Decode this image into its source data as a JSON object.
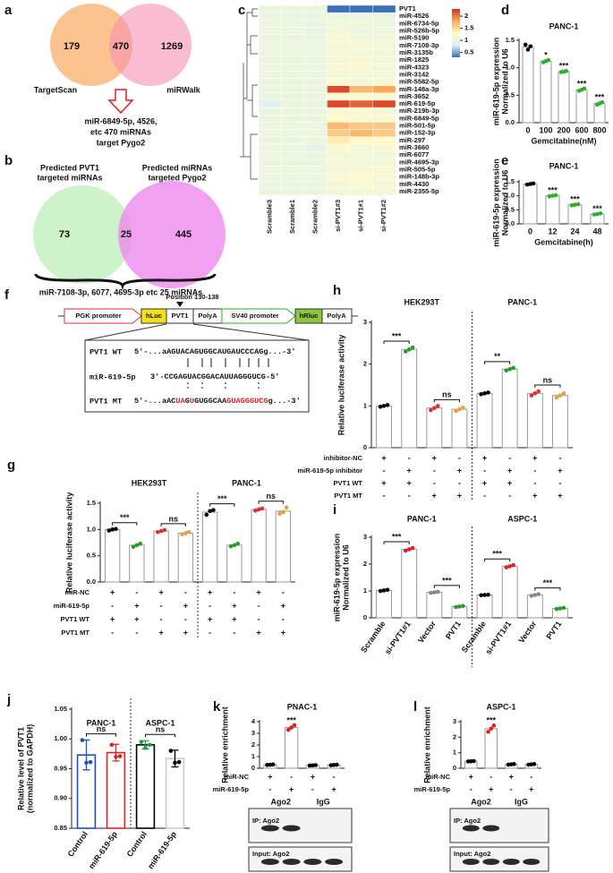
{
  "a": {
    "letter": "a",
    "left": {
      "label": "TargetScan",
      "count": 179
    },
    "both": 470,
    "right": {
      "label": "miRWalk",
      "count": 1269
    },
    "result": [
      "miR-6849-5p, 4526,",
      "etc 470 miRNAs",
      "target Pygo2"
    ]
  },
  "b": {
    "letter": "b",
    "left": {
      "label": [
        "Predicted PVT1",
        "targeted miRNAs"
      ],
      "count": 73
    },
    "both": 25,
    "right": {
      "label": [
        "Predicted miRNAs",
        "targeted Pygo2"
      ],
      "count": 445
    },
    "result": "miR-7108-3p, 6077, 4695-3p etc 25 miRNAs"
  },
  "f": {
    "letter": "f",
    "position": "Position 130-138",
    "elements": [
      "PGK promoter",
      "hLuc",
      "PVT1",
      "PolyA",
      "SV40 promoter",
      "hRluc",
      "PolyA"
    ],
    "alignment": [
      {
        "name": "PVT1 WT",
        "segments": [
          {
            "text": "5'-...aAGUACAGUGGCAUGAUCCCAGg...-3'"
          }
        ]
      },
      {
        "name": "miR-619-5p",
        "segments": [
          {
            "text": "3'-CCGAGUACGGACAUUAGGGUCG-5'"
          }
        ]
      },
      {
        "name": "PVT1 MT",
        "segments": [
          {
            "text": "5'-...aAC"
          },
          {
            "text": "UA",
            "highlight": true
          },
          {
            "text": "G"
          },
          {
            "text": "U",
            "highlight": true
          },
          {
            "text": "GUGGCAA"
          },
          {
            "text": "GUAGGGUCG",
            "highlight": true
          },
          {
            "text": "g...-3'"
          }
        ]
      }
    ]
  },
  "chart_data": [
    {
      "type": "heatmap",
      "panel": "c",
      "rows": [
        "PVT1",
        "miR-4526",
        "miR-6734-5p",
        "miR-526b-5p",
        "miR-5190",
        "miR-7108-3p",
        "miR-3135b",
        "miR-1825",
        "miR-4323",
        "miR-3142",
        "miR-5582-5p",
        "miR-148a-3p",
        "miR-3652",
        "miR-619-5p",
        "miR-219b-3p",
        "miR-6849-5p",
        "miR-501-5p",
        "miR-152-3p",
        "miR-297",
        "miR-3660",
        "miR-6077",
        "miR-4695-3p",
        "miR-505-5p",
        "miR-148b-3p",
        "miR-4430",
        "miR-2355-5p"
      ],
      "columns": [
        "Scramble3",
        "Scramble1",
        "Scramble2",
        "si-PVT1#3",
        "si-PVT1#1",
        "si-PVT1#2"
      ],
      "values": [
        [
          1.0,
          1.0,
          1.0,
          0.3,
          0.3,
          0.3
        ],
        [
          1.0,
          1.0,
          1.0,
          1.0,
          1.0,
          1.0
        ],
        [
          1.0,
          1.0,
          1.0,
          1.1,
          1.1,
          1.0
        ],
        [
          1.0,
          1.0,
          0.9,
          1.1,
          1.0,
          1.0
        ],
        [
          1.0,
          1.0,
          1.0,
          1.2,
          1.1,
          1.1
        ],
        [
          1.0,
          1.0,
          1.0,
          1.1,
          1.1,
          1.1
        ],
        [
          1.0,
          1.0,
          1.0,
          1.2,
          1.1,
          1.1
        ],
        [
          1.0,
          1.0,
          1.0,
          1.1,
          1.2,
          1.1
        ],
        [
          1.0,
          1.0,
          1.0,
          1.2,
          1.2,
          1.1
        ],
        [
          1.0,
          1.0,
          1.0,
          1.1,
          1.1,
          1.1
        ],
        [
          1.0,
          1.0,
          1.0,
          1.2,
          1.1,
          1.2
        ],
        [
          1.0,
          1.0,
          1.0,
          2.2,
          1.7,
          1.8
        ],
        [
          1.0,
          1.0,
          1.0,
          1.2,
          1.2,
          1.2
        ],
        [
          0.8,
          1.0,
          1.0,
          2.2,
          2.1,
          2.2
        ],
        [
          1.0,
          1.0,
          1.0,
          1.2,
          1.2,
          1.1
        ],
        [
          1.0,
          1.0,
          1.0,
          1.3,
          1.2,
          1.2
        ],
        [
          1.0,
          1.0,
          1.0,
          1.7,
          1.6,
          1.6
        ],
        [
          1.0,
          1.0,
          1.0,
          1.6,
          1.7,
          1.6
        ],
        [
          1.0,
          1.0,
          1.0,
          1.4,
          1.3,
          1.3
        ],
        [
          1.0,
          1.0,
          0.9,
          1.2,
          1.1,
          1.2
        ],
        [
          1.0,
          1.0,
          1.0,
          1.1,
          1.1,
          1.1
        ],
        [
          1.0,
          1.0,
          1.0,
          1.2,
          1.1,
          1.1
        ],
        [
          1.0,
          1.0,
          1.0,
          1.1,
          1.1,
          1.2
        ],
        [
          1.0,
          1.0,
          1.0,
          1.2,
          1.2,
          1.2
        ],
        [
          1.0,
          1.0,
          1.0,
          1.1,
          1.2,
          1.1
        ],
        [
          1.0,
          1.0,
          1.0,
          1.1,
          1.1,
          1.1
        ]
      ],
      "zlim": [
        0.3,
        2.3
      ],
      "zticks": [
        0.5,
        1,
        1.5,
        2
      ],
      "colors": [
        "#3b6fb6",
        "#dff2f0",
        "#fffac8",
        "#f8a95c",
        "#d7301f"
      ]
    },
    {
      "type": "bar",
      "panel": "d",
      "title": "PANC-1",
      "ylabel": [
        "miR-619-5p expression",
        "Normalized to U6"
      ],
      "xlabel": "Gemcitabine(nM)",
      "categories": [
        "0",
        "100",
        "200",
        "600",
        "800"
      ],
      "values": [
        1.38,
        1.12,
        0.93,
        0.6,
        0.35
      ],
      "points": [
        [
          1.42,
          1.33,
          1.39
        ],
        [
          1.1,
          1.12,
          1.14
        ],
        [
          0.92,
          0.93,
          0.94
        ],
        [
          0.58,
          0.6,
          0.62
        ],
        [
          0.33,
          0.35,
          0.37
        ]
      ],
      "annotations": [
        null,
        "*",
        "***",
        "***",
        "***"
      ],
      "colors": [
        "#000000",
        "#2ab02a",
        "#2ab02a",
        "#2ab02a",
        "#2ab02a"
      ],
      "ylim": [
        0,
        1.5
      ],
      "yticks": [
        {
          "value": 0,
          "label": "0.0"
        },
        0.5,
        {
          "value": 1,
          "label": "1.0"
        },
        1.5
      ]
    },
    {
      "type": "bar",
      "panel": "e",
      "title": "PANC-1",
      "ylabel": [
        "miR-619-5p expression",
        "Normalized to U6"
      ],
      "xlabel": "Gemcitabine(h)",
      "categories": [
        "0",
        "12",
        "24",
        "48"
      ],
      "values": [
        1.42,
        1.0,
        0.68,
        0.35
      ],
      "points": [
        [
          1.4,
          1.42,
          1.44
        ],
        [
          0.98,
          1.0,
          1.02
        ],
        [
          0.66,
          0.68,
          0.7
        ],
        [
          0.33,
          0.35,
          0.37
        ]
      ],
      "annotations": [
        null,
        "***",
        "***",
        "***"
      ],
      "colors": [
        "#000000",
        "#2ab02a",
        "#2ab02a",
        "#2ab02a"
      ],
      "ylim": [
        0,
        1.5
      ],
      "yticks": [
        {
          "value": 0,
          "label": "0.0"
        },
        0.5,
        {
          "value": 1,
          "label": "1.0"
        },
        1.5
      ]
    },
    {
      "type": "bar",
      "panel": "g",
      "groups": [
        "HEK293T",
        "PANC-1"
      ],
      "ylabel": [
        "Relative luciferase activity"
      ],
      "values": [
        1.0,
        0.7,
        0.97,
        0.93,
        1.33,
        0.7,
        1.38,
        1.35
      ],
      "points": [
        [
          0.98,
          1.0,
          1.01
        ],
        [
          0.67,
          0.7,
          0.73
        ],
        [
          0.95,
          0.97,
          0.99
        ],
        [
          0.91,
          0.93,
          0.95
        ],
        [
          1.28,
          1.35,
          1.37
        ],
        [
          0.68,
          0.7,
          0.73
        ],
        [
          1.36,
          1.38,
          1.4
        ],
        [
          1.3,
          1.33,
          1.42
        ]
      ],
      "colors": [
        "#000000",
        "#2a9a2a",
        "#e03030",
        "#e8a040",
        "#000000",
        "#2a9a2a",
        "#e03030",
        "#e8a040"
      ],
      "brackets": [
        {
          "label": "***",
          "bars": [
            0,
            1
          ]
        },
        {
          "label": "ns",
          "bars": [
            2,
            3
          ]
        },
        {
          "label": "***",
          "bars": [
            4,
            5
          ]
        },
        {
          "label": "ns",
          "bars": [
            6,
            7
          ]
        }
      ],
      "conditions": [
        {
          "name": "miR-NC",
          "marks": [
            "+",
            "-",
            "+",
            "-",
            "+",
            "-",
            "+",
            "-"
          ]
        },
        {
          "name": "miR-619-5p",
          "marks": [
            "-",
            "+",
            "-",
            "+",
            "-",
            "+",
            "-",
            "+"
          ]
        },
        {
          "name": "PVT1 WT",
          "marks": [
            "+",
            "+",
            "-",
            "-",
            "+",
            "+",
            "-",
            "-"
          ]
        },
        {
          "name": "PVT1 MT",
          "marks": [
            "-",
            "-",
            "+",
            "+",
            "-",
            "-",
            "+",
            "+"
          ]
        }
      ],
      "ylim": [
        0,
        1.5
      ],
      "yticks": [
        {
          "value": 0,
          "label": "0.0"
        },
        0.5,
        {
          "value": 1,
          "label": "1.0"
        },
        1.5
      ]
    },
    {
      "type": "bar",
      "panel": "h",
      "groups": [
        "HEK293T",
        "PANC-1"
      ],
      "ylabel": [
        "Relative luciferase activity"
      ],
      "values": [
        1.0,
        2.35,
        0.95,
        0.92,
        1.3,
        1.88,
        1.3,
        1.25
      ],
      "points": [
        [
          0.98,
          1.0,
          1.02
        ],
        [
          2.3,
          2.35,
          2.4
        ],
        [
          0.9,
          0.95,
          1.0
        ],
        [
          0.88,
          0.92,
          0.96
        ],
        [
          1.28,
          1.3,
          1.32
        ],
        [
          1.85,
          1.88,
          1.91
        ],
        [
          1.25,
          1.3,
          1.35
        ],
        [
          1.2,
          1.25,
          1.3
        ]
      ],
      "colors": [
        "#000000",
        "#2a9a2a",
        "#e03030",
        "#e8a040",
        "#000000",
        "#2a9a2a",
        "#e03030",
        "#e8a040"
      ],
      "brackets": [
        {
          "label": "***",
          "bars": [
            0,
            1
          ]
        },
        {
          "label": "ns",
          "bars": [
            2,
            3
          ]
        },
        {
          "label": "**",
          "bars": [
            4,
            5
          ]
        },
        {
          "label": "ns",
          "bars": [
            6,
            7
          ]
        }
      ],
      "conditions": [
        {
          "name": "inhibitor-NC",
          "marks": [
            "+",
            "-",
            "+",
            "-",
            "+",
            "-",
            "+",
            "-"
          ]
        },
        {
          "name": "miR-619-5p inhibitor",
          "marks": [
            "-",
            "+",
            "-",
            "+",
            "-",
            "+",
            "-",
            "+"
          ]
        },
        {
          "name": "PVT1 WT",
          "marks": [
            "+",
            "+",
            "-",
            "-",
            "+",
            "+",
            "-",
            "-"
          ]
        },
        {
          "name": "PVT1 MT",
          "marks": [
            "-",
            "-",
            "+",
            "+",
            "-",
            "-",
            "+",
            "+"
          ]
        }
      ],
      "ylim": [
        0,
        3
      ],
      "yticks": [
        0,
        1,
        2,
        3
      ]
    },
    {
      "type": "bar",
      "panel": "i",
      "groups": [
        "PANC-1",
        "ASPC-1"
      ],
      "ylabel": [
        "miR-619-5p expression",
        "Normalized to U6"
      ],
      "categories": [
        "Scramble",
        "si-PVT1#1",
        "Vector",
        "PVT1",
        "Scramble",
        "si-PVT1#1",
        "Vector",
        "PVT1"
      ],
      "values": [
        1.02,
        2.55,
        0.95,
        0.42,
        0.85,
        1.92,
        0.85,
        0.35
      ],
      "points": [
        [
          1.0,
          1.02,
          1.04
        ],
        [
          2.5,
          2.55,
          2.6
        ],
        [
          0.93,
          0.95,
          0.97
        ],
        [
          0.4,
          0.42,
          0.44
        ],
        [
          0.84,
          0.85,
          0.86
        ],
        [
          1.88,
          1.92,
          1.96
        ],
        [
          0.82,
          0.85,
          0.88
        ],
        [
          0.33,
          0.35,
          0.37
        ]
      ],
      "colors": [
        "#000000",
        "#e02020",
        "#888888",
        "#2a9a2a",
        "#000000",
        "#e02020",
        "#888888",
        "#2a9a2a"
      ],
      "brackets": [
        {
          "label": "***",
          "bars": [
            0,
            1
          ]
        },
        {
          "label": "***",
          "bars": [
            2,
            3
          ]
        },
        {
          "label": "***",
          "bars": [
            4,
            5
          ]
        },
        {
          "label": "***",
          "bars": [
            6,
            7
          ]
        }
      ],
      "ylim": [
        0,
        3
      ],
      "yticks": [
        0,
        1,
        2,
        3
      ]
    },
    {
      "type": "bar",
      "panel": "j",
      "groups": [
        "PANC-1",
        "ASPC-1"
      ],
      "ylabel": [
        "Relative level of PVT1",
        "(normalized to GAPDH)"
      ],
      "categories": [
        "Control",
        "miR-619-5p",
        "Control",
        "miR-619-5p"
      ],
      "values": [
        0.973,
        0.977,
        0.99,
        0.967
      ],
      "errors": [
        0.025,
        0.014,
        0.007,
        0.014
      ],
      "points": [
        [
          0.998,
          0.96,
          0.961
        ],
        [
          0.99,
          0.97,
          0.971
        ],
        [
          0.995,
          0.985,
          0.99
        ],
        [
          0.98,
          0.96,
          0.961
        ]
      ],
      "colors": [
        "#2050c0",
        "#e02020",
        "#20a040",
        "#000000"
      ],
      "outline_colors": [
        "#2050c0",
        "#e02020",
        "#000000",
        "#cccccc"
      ],
      "brackets": [
        {
          "label": "ns",
          "bars": [
            0,
            1
          ]
        },
        {
          "label": "ns",
          "bars": [
            2,
            3
          ]
        }
      ],
      "ylim": [
        0.85,
        1.05
      ],
      "yticks": [
        0.85,
        {
          "value": 0.9,
          "label": "0.90"
        },
        0.95,
        {
          "value": 1,
          "label": "1.00"
        },
        1.05
      ]
    },
    {
      "type": "bar",
      "panel": "k",
      "title": "PNAC-1",
      "ylabel": [
        "Relative enrichment"
      ],
      "groups": [
        "Ago2",
        "IgG"
      ],
      "values": [
        0.3,
        3.5,
        0.25,
        0.28
      ],
      "points": [
        [
          0.28,
          0.3,
          0.32
        ],
        [
          3.3,
          3.5,
          3.7
        ],
        [
          0.23,
          0.25,
          0.27
        ],
        [
          0.26,
          0.28,
          0.3
        ]
      ],
      "annotations": [
        null,
        "***",
        null,
        null
      ],
      "colors": [
        "#000000",
        "#e02020",
        "#000000",
        "#000000"
      ],
      "conditions": [
        {
          "name": "miR-NC",
          "marks": [
            "+",
            "-",
            "+",
            "-"
          ]
        },
        {
          "name": "miR-619-5p",
          "marks": [
            "-",
            "+",
            "-",
            "+"
          ]
        }
      ],
      "blots": [
        "IP: Ago2",
        "Input: Ago2"
      ],
      "ylim": [
        0,
        4
      ],
      "yticks": [
        0,
        1,
        2,
        3,
        4
      ]
    },
    {
      "type": "bar",
      "panel": "l",
      "title": "ASPC-1",
      "ylabel": [
        "Relative enrichment"
      ],
      "groups": [
        "Ago2",
        "IgG"
      ],
      "values": [
        0.45,
        2.55,
        0.25,
        0.25
      ],
      "points": [
        [
          0.44,
          0.45,
          0.46
        ],
        [
          2.35,
          2.55,
          2.75
        ],
        [
          0.23,
          0.25,
          0.27
        ],
        [
          0.23,
          0.25,
          0.27
        ]
      ],
      "annotations": [
        null,
        "***",
        null,
        null
      ],
      "colors": [
        "#000000",
        "#e02020",
        "#000000",
        "#000000"
      ],
      "conditions": [
        {
          "name": "miR-NC",
          "marks": [
            "+",
            "-",
            "+",
            "-"
          ]
        },
        {
          "name": "miR-619-5p",
          "marks": [
            "-",
            "+",
            "-",
            "+"
          ]
        }
      ],
      "blots": [
        "IP: Ago2",
        "Input: Ago2"
      ],
      "ylim": [
        0,
        3
      ],
      "yticks": [
        0,
        1,
        2,
        3
      ]
    }
  ]
}
